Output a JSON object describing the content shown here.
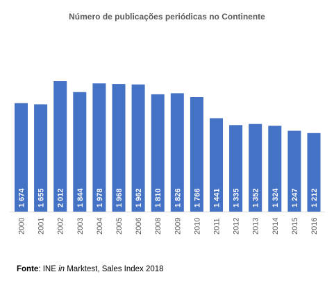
{
  "chart_data": {
    "type": "bar",
    "title": "Número de publicações periódicas no Continente",
    "xlabel": "",
    "ylabel": "",
    "categories": [
      "2000",
      "2001",
      "2002",
      "2003",
      "2004",
      "2005",
      "2006",
      "2008",
      "2009",
      "2010",
      "2011",
      "2012",
      "2013",
      "2014",
      "2015",
      "2016"
    ],
    "values": [
      1674,
      1655,
      2012,
      1844,
      1978,
      1968,
      1962,
      1810,
      1826,
      1766,
      1441,
      1335,
      1352,
      1324,
      1247,
      1212
    ],
    "data_labels": [
      "1 674",
      "1 655",
      "2 012",
      "1 844",
      "1 978",
      "1 968",
      "1 962",
      "1 810",
      "1 826",
      "1 766",
      "1 441",
      "1 335",
      "1 352",
      "1 324",
      "1 247",
      "1 212"
    ],
    "ylim": [
      0,
      2012
    ],
    "grid": false,
    "legend": "none",
    "bar_color": "#4472C4",
    "label_color": "#FFFFFF"
  },
  "source": {
    "label": "Fonte",
    "separator": ": ",
    "org": "INE ",
    "connector": "in",
    "rest": " Marktest, Sales Index 2018"
  }
}
